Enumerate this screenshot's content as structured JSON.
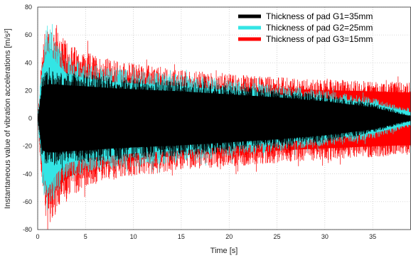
{
  "chart_data": {
    "type": "line",
    "title": "",
    "xlabel": "Time [s]",
    "ylabel": "Instantaneous value of vibration accelerations [m/s²]",
    "xlim": [
      0,
      39
    ],
    "ylim": [
      -80,
      80
    ],
    "x_ticks": [
      "0",
      "5",
      "10",
      "15",
      "20",
      "25",
      "30",
      "35"
    ],
    "y_ticks": [
      "80",
      "60",
      "40",
      "20",
      "0",
      "-20",
      "-40",
      "-60",
      "-80"
    ],
    "grid": true,
    "legend_position": "top-right",
    "series": [
      {
        "name": "Thickness of  pad G3=15mm",
        "color": "#ff0000",
        "envelope": {
          "x": [
            0.5,
            1,
            2,
            3,
            5,
            8,
            10,
            15,
            20,
            25,
            30,
            35,
            38,
            39
          ],
          "upper": [
            55,
            72,
            65,
            55,
            48,
            42,
            40,
            35,
            32,
            30,
            28,
            27,
            26,
            26
          ],
          "lower": [
            -55,
            -78,
            -70,
            -60,
            -50,
            -44,
            -42,
            -37,
            -35,
            -32,
            -30,
            -28,
            -27,
            -27
          ]
        }
      },
      {
        "name": "Thickness of  pad G2=25mm",
        "color": "#33e5e5",
        "envelope": {
          "x": [
            0.5,
            1,
            2,
            3,
            5,
            8,
            10,
            15,
            20,
            25,
            30,
            35,
            38,
            39
          ],
          "upper": [
            50,
            68,
            55,
            45,
            40,
            36,
            35,
            32,
            28,
            24,
            20,
            15,
            8,
            6
          ],
          "lower": [
            -50,
            -70,
            -55,
            -45,
            -40,
            -37,
            -35,
            -32,
            -28,
            -24,
            -20,
            -15,
            -8,
            -6
          ]
        }
      },
      {
        "name": "Thickness of  pad G1=35mm",
        "color": "#000000",
        "envelope": {
          "x": [
            0.5,
            1,
            2,
            3,
            5,
            8,
            10,
            15,
            20,
            25,
            30,
            35,
            38,
            39
          ],
          "upper": [
            32,
            34,
            34,
            33,
            32,
            30,
            29,
            27,
            24,
            21,
            17,
            11,
            4,
            2
          ],
          "lower": [
            -32,
            -34,
            -34,
            -33,
            -32,
            -30,
            -29,
            -27,
            -24,
            -21,
            -17,
            -11,
            -4,
            -2
          ]
        }
      }
    ]
  }
}
